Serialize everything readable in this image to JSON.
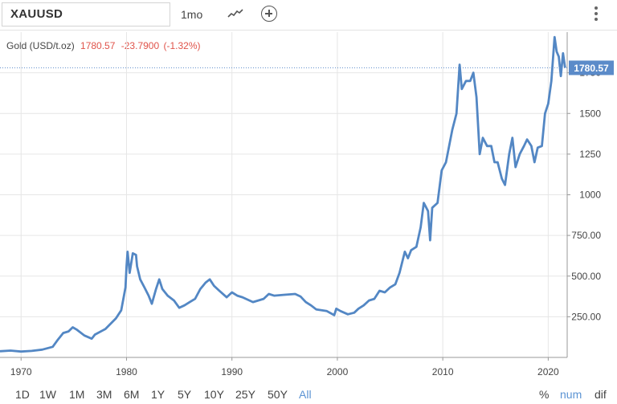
{
  "toolbar": {
    "symbol": "XAUUSD",
    "interval": "1mo",
    "chart_type_icon": "line-chart-icon",
    "add_icon": "plus-circle-icon",
    "menu_icon": "vertical-dots-icon"
  },
  "legend": {
    "name": "Gold (USD/t.oz)",
    "price": "1780.57",
    "change": "-23.7900",
    "change_pct": "(-1.32%)"
  },
  "price_tag": "1780.57",
  "range_buttons": [
    "1D",
    "1W",
    "1M",
    "3M",
    "6M",
    "1Y",
    "5Y",
    "10Y",
    "25Y",
    "50Y",
    "All"
  ],
  "active_range": "All",
  "scale_modes": [
    "%",
    "num",
    "dif"
  ],
  "active_scale_mode": "num",
  "colors": {
    "line": "#5387c4",
    "price_tag": "#5b8bc9",
    "change": "#e0534a",
    "grid": "#e6e6e6"
  },
  "chart_data": {
    "type": "line",
    "title": "Gold (USD/t.oz)",
    "series": [
      {
        "name": "Gold (USD/t.oz)",
        "points": [
          [
            1968.0,
            38
          ],
          [
            1969.0,
            42
          ],
          [
            1970.0,
            36
          ],
          [
            1971.0,
            40
          ],
          [
            1972.0,
            48
          ],
          [
            1973.0,
            65
          ],
          [
            1973.5,
            110
          ],
          [
            1974.0,
            150
          ],
          [
            1974.5,
            160
          ],
          [
            1974.9,
            185
          ],
          [
            1975.3,
            170
          ],
          [
            1976.0,
            135
          ],
          [
            1976.7,
            115
          ],
          [
            1977.0,
            140
          ],
          [
            1978.0,
            175
          ],
          [
            1979.0,
            240
          ],
          [
            1979.5,
            290
          ],
          [
            1979.9,
            430
          ],
          [
            1980.0,
            560
          ],
          [
            1980.1,
            650
          ],
          [
            1980.3,
            520
          ],
          [
            1980.6,
            640
          ],
          [
            1980.9,
            630
          ],
          [
            1981.0,
            560
          ],
          [
            1981.3,
            480
          ],
          [
            1981.7,
            430
          ],
          [
            1982.1,
            380
          ],
          [
            1982.4,
            330
          ],
          [
            1982.8,
            420
          ],
          [
            1983.1,
            480
          ],
          [
            1983.4,
            420
          ],
          [
            1983.9,
            380
          ],
          [
            1984.5,
            350
          ],
          [
            1985.0,
            305
          ],
          [
            1985.5,
            320
          ],
          [
            1986.0,
            340
          ],
          [
            1986.5,
            360
          ],
          [
            1987.0,
            420
          ],
          [
            1987.5,
            460
          ],
          [
            1987.9,
            480
          ],
          [
            1988.3,
            440
          ],
          [
            1988.8,
            410
          ],
          [
            1989.5,
            370
          ],
          [
            1990.0,
            400
          ],
          [
            1990.5,
            380
          ],
          [
            1991.0,
            370
          ],
          [
            1992.0,
            340
          ],
          [
            1993.0,
            360
          ],
          [
            1993.5,
            390
          ],
          [
            1994.0,
            380
          ],
          [
            1995.0,
            385
          ],
          [
            1996.0,
            390
          ],
          [
            1996.5,
            375
          ],
          [
            1997.0,
            340
          ],
          [
            1997.5,
            320
          ],
          [
            1998.0,
            295
          ],
          [
            1998.5,
            290
          ],
          [
            1999.0,
            285
          ],
          [
            1999.7,
            260
          ],
          [
            1999.9,
            300
          ],
          [
            2000.3,
            285
          ],
          [
            2001.0,
            265
          ],
          [
            2001.6,
            275
          ],
          [
            2002.0,
            300
          ],
          [
            2002.5,
            320
          ],
          [
            2003.0,
            350
          ],
          [
            2003.5,
            360
          ],
          [
            2004.0,
            410
          ],
          [
            2004.5,
            400
          ],
          [
            2005.0,
            430
          ],
          [
            2005.5,
            450
          ],
          [
            2005.9,
            520
          ],
          [
            2006.4,
            650
          ],
          [
            2006.7,
            610
          ],
          [
            2007.0,
            660
          ],
          [
            2007.5,
            680
          ],
          [
            2007.9,
            800
          ],
          [
            2008.2,
            950
          ],
          [
            2008.6,
            900
          ],
          [
            2008.8,
            720
          ],
          [
            2009.0,
            920
          ],
          [
            2009.5,
            950
          ],
          [
            2009.9,
            1150
          ],
          [
            2010.3,
            1200
          ],
          [
            2010.9,
            1400
          ],
          [
            2011.3,
            1500
          ],
          [
            2011.6,
            1800
          ],
          [
            2011.8,
            1650
          ],
          [
            2012.2,
            1700
          ],
          [
            2012.6,
            1700
          ],
          [
            2012.9,
            1750
          ],
          [
            2013.2,
            1600
          ],
          [
            2013.5,
            1250
          ],
          [
            2013.8,
            1350
          ],
          [
            2014.2,
            1300
          ],
          [
            2014.6,
            1300
          ],
          [
            2014.9,
            1200
          ],
          [
            2015.2,
            1200
          ],
          [
            2015.6,
            1100
          ],
          [
            2015.9,
            1060
          ],
          [
            2016.3,
            1250
          ],
          [
            2016.6,
            1350
          ],
          [
            2016.9,
            1170
          ],
          [
            2017.3,
            1250
          ],
          [
            2017.7,
            1300
          ],
          [
            2018.0,
            1340
          ],
          [
            2018.4,
            1300
          ],
          [
            2018.7,
            1200
          ],
          [
            2019.0,
            1290
          ],
          [
            2019.4,
            1300
          ],
          [
            2019.7,
            1500
          ],
          [
            2020.0,
            1560
          ],
          [
            2020.3,
            1700
          ],
          [
            2020.6,
            1970
          ],
          [
            2020.8,
            1880
          ],
          [
            2021.0,
            1850
          ],
          [
            2021.2,
            1730
          ],
          [
            2021.4,
            1870
          ],
          [
            2021.6,
            1780.57
          ]
        ]
      }
    ],
    "xlim": [
      1968,
      2021.8
    ],
    "ylim": [
      0,
      2000
    ],
    "x_ticks": [
      "1970",
      "1980",
      "1990",
      "2000",
      "2010",
      "2020"
    ],
    "y_ticks": [
      "250.00",
      "500.00",
      "750.00",
      "1000",
      "1250",
      "1500",
      "1750"
    ],
    "grid": true,
    "y_axis_position": "right"
  }
}
